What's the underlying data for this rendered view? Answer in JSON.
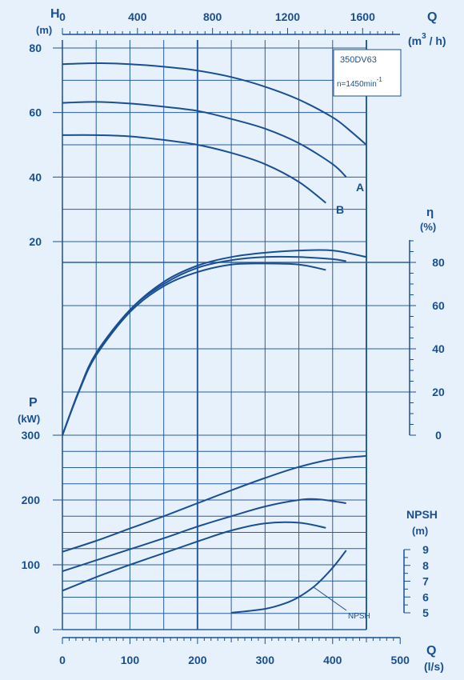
{
  "chart_data": {
    "type": "line",
    "title": "",
    "colors": {
      "background": "#e6f1fb",
      "ink": "#1a4f93",
      "grid": "#2a5d9f"
    },
    "model": {
      "name": "350DV63",
      "speed_prefix": "n=1450min",
      "speed_exp": "-1"
    },
    "axes": {
      "q_m3h": {
        "label": "Q",
        "unit_prefix": "(m",
        "unit_exp": "3",
        "unit_suffix": " / h)",
        "range": [
          0,
          1800
        ],
        "ticks": [
          0,
          400,
          800,
          1200,
          1600
        ]
      },
      "q_ls": {
        "label": "Q",
        "unit": "(l/s)",
        "range": [
          0,
          500
        ],
        "ticks": [
          0,
          100,
          200,
          300,
          400,
          500
        ]
      },
      "head": {
        "label": "H",
        "unit": "(m)",
        "range": [
          20,
          80
        ],
        "ticks": [
          20,
          40,
          60,
          80
        ]
      },
      "efficiency": {
        "label": "η",
        "unit": "(%)",
        "range": [
          0,
          90
        ],
        "ticks": [
          0,
          20,
          40,
          60,
          80
        ]
      },
      "power": {
        "label": "P",
        "unit": "(kW)",
        "range": [
          0,
          300
        ],
        "ticks": [
          0,
          100,
          200,
          300
        ]
      },
      "npsh": {
        "label": "NPSH",
        "unit": "(m)",
        "range": [
          5,
          9
        ],
        "ticks": [
          5,
          6,
          7,
          8,
          9
        ]
      }
    },
    "head_curves": [
      {
        "label": "",
        "x": [
          0,
          50,
          100,
          150,
          200,
          250,
          300,
          350,
          400,
          425,
          450
        ],
        "y": [
          75,
          75.3,
          75,
          74.2,
          73,
          71,
          68,
          64,
          58.5,
          54.5,
          50
        ]
      },
      {
        "label": "A",
        "x": [
          0,
          50,
          100,
          150,
          200,
          250,
          300,
          350,
          400,
          420
        ],
        "y": [
          63,
          63.3,
          62.8,
          61.8,
          60.5,
          58,
          55,
          50.5,
          44,
          40
        ]
      },
      {
        "label": "B",
        "x": [
          0,
          50,
          100,
          150,
          200,
          250,
          300,
          350,
          390
        ],
        "y": [
          53,
          53,
          52.6,
          51.5,
          50,
          47.5,
          44,
          38.5,
          32
        ]
      }
    ],
    "efficiency_curves": [
      {
        "x": [
          0,
          25,
          50,
          100,
          150,
          200,
          250,
          300,
          350,
          400,
          450
        ],
        "y": [
          0,
          21,
          38,
          58,
          71,
          78.5,
          82.5,
          84.5,
          85.5,
          85.5,
          82.5
        ]
      },
      {
        "x": [
          0,
          25,
          50,
          100,
          150,
          200,
          250,
          300,
          350,
          400,
          420
        ],
        "y": [
          0,
          21,
          38,
          58,
          70,
          77.5,
          81,
          82.5,
          82.5,
          81.5,
          80.5
        ]
      },
      {
        "x": [
          0,
          25,
          50,
          100,
          150,
          200,
          250,
          300,
          350,
          390
        ],
        "y": [
          0,
          20.5,
          37,
          57,
          69,
          75.5,
          79,
          79.5,
          79,
          76.5
        ]
      }
    ],
    "power_curves": [
      {
        "x": [
          0,
          50,
          100,
          150,
          200,
          250,
          300,
          350,
          400,
          450
        ],
        "y": [
          120,
          137,
          156,
          175,
          195,
          215,
          234,
          251,
          263,
          268
        ]
      },
      {
        "x": [
          0,
          50,
          100,
          150,
          200,
          250,
          300,
          350,
          380,
          420
        ],
        "y": [
          90,
          107,
          124,
          141,
          159,
          175,
          190,
          200,
          201,
          195
        ]
      },
      {
        "x": [
          0,
          50,
          100,
          150,
          200,
          250,
          300,
          350,
          390
        ],
        "y": [
          60,
          81,
          100,
          118,
          136,
          153,
          164,
          165,
          157
        ]
      }
    ],
    "npsh_curve": {
      "label": "NPSH",
      "x": [
        250,
        300,
        330,
        350,
        375,
        400,
        420
      ],
      "y": [
        5,
        5.25,
        5.6,
        6.0,
        6.75,
        7.85,
        8.95
      ]
    }
  }
}
